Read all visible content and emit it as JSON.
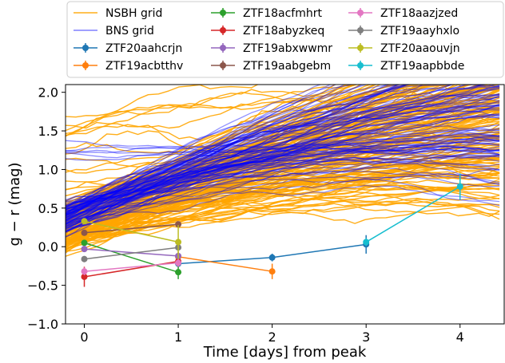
{
  "chart_data": {
    "type": "line",
    "xlabel": "Time [days] from peak",
    "ylabel": "g − r (mag)",
    "xlim": [
      -0.2,
      4.47
    ],
    "ylim": [
      -1.0,
      2.1
    ],
    "xticks": [
      0,
      1,
      2,
      3,
      4
    ],
    "xtick_labels": [
      "0",
      "1",
      "2",
      "3",
      "4"
    ],
    "yticks": [
      -1.0,
      -0.5,
      0.0,
      0.5,
      1.0,
      1.5,
      2.0
    ],
    "ytick_labels": [
      "−1.0",
      "−0.5",
      "0.0",
      "0.5",
      "1.0",
      "1.5",
      "2.0"
    ],
    "grid": false,
    "legend_position": "top",
    "model_grids": [
      {
        "name": "NSBH grid",
        "color": "#ffa500"
      },
      {
        "name": "BNS grid",
        "color": "#0000ff"
      }
    ],
    "series": [
      {
        "name": "ZTF20aahcrjn",
        "color": "#1f77b4",
        "x": [
          1,
          2,
          3
        ],
        "y": [
          -0.22,
          -0.14,
          0.03
        ],
        "yerr": [
          0.05,
          0.05,
          0.12
        ]
      },
      {
        "name": "ZTF19acbtthv",
        "color": "#ff7f0e",
        "x": [
          1,
          2
        ],
        "y": [
          -0.13,
          -0.32
        ],
        "yerr": [
          0.07,
          0.1
        ]
      },
      {
        "name": "ZTF18acfmhrt",
        "color": "#2ca02c",
        "x": [
          0,
          1
        ],
        "y": [
          0.05,
          -0.33
        ],
        "yerr": [
          0.04,
          0.09
        ]
      },
      {
        "name": "ZTF18abyzkeq",
        "color": "#d62728",
        "x": [
          0,
          1
        ],
        "y": [
          -0.39,
          -0.19
        ],
        "yerr": [
          0.13,
          0.07
        ]
      },
      {
        "name": "ZTF19abxwwmr",
        "color": "#9467bd",
        "x": [
          0,
          1
        ],
        "y": [
          -0.03,
          -0.12
        ],
        "yerr": [
          0.04,
          0.04
        ]
      },
      {
        "name": "ZTF19aabgebm",
        "color": "#8c564b",
        "x": [
          0,
          1
        ],
        "y": [
          0.18,
          0.29
        ],
        "yerr": [
          0.03,
          0.03
        ]
      },
      {
        "name": "ZTF18aazjzed",
        "color": "#e377c2",
        "x": [
          0,
          1
        ],
        "y": [
          -0.32,
          -0.21
        ],
        "yerr": [
          0.05,
          0.05
        ]
      },
      {
        "name": "ZTF19aayhxlo",
        "color": "#7f7f7f",
        "x": [
          0,
          1
        ],
        "y": [
          -0.16,
          -0.01
        ],
        "yerr": [
          0.04,
          0.04
        ]
      },
      {
        "name": "ZTF20aaouvjn",
        "color": "#bcbd22",
        "x": [
          0,
          1
        ],
        "y": [
          0.33,
          0.06
        ],
        "yerr": [
          0.03,
          0.22
        ]
      },
      {
        "name": "ZTF19aapbbde",
        "color": "#17becf",
        "x": [
          3,
          4
        ],
        "y": [
          0.06,
          0.78
        ],
        "yerr": [
          0.05,
          0.17
        ]
      }
    ]
  }
}
